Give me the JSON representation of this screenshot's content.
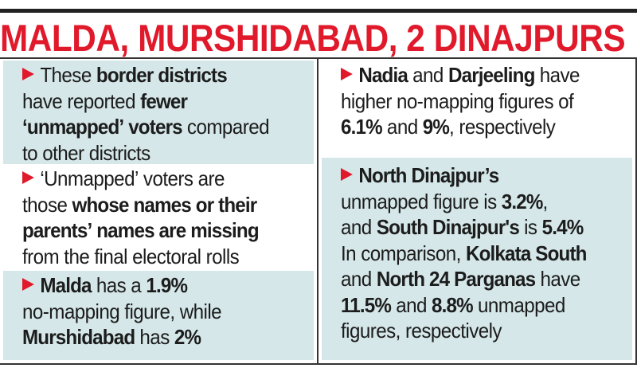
{
  "title": "MALDA, MURSHIDABAD, 2 DINAJPURS",
  "colors": {
    "title": "#e0192b",
    "panel": "#d5e7e9",
    "bullet": "#e0192b"
  },
  "bullet_icon": "red-arrowhead",
  "left": [
    {
      "segments": [
        {
          "t": "These ",
          "b": false
        },
        {
          "t": "border districts",
          "b": true
        },
        {
          "t": " have reported ",
          "b": false
        },
        {
          "t": "fewer ‘unmapped’ voters",
          "b": true
        },
        {
          "t": " compared to other districts",
          "b": false
        }
      ],
      "lines": [
        [
          {
            "t": "These ",
            "b": false
          },
          {
            "t": "border districts",
            "b": true
          }
        ],
        [
          {
            "t": "have reported ",
            "b": false
          },
          {
            "t": "fewer",
            "b": true
          }
        ],
        [
          {
            "t": "‘unmapped’ voters",
            "b": true
          },
          {
            "t": " compared",
            "b": false
          }
        ],
        [
          {
            "t": "to other districts",
            "b": false
          }
        ]
      ]
    },
    {
      "lines": [
        [
          {
            "t": "‘Unmapped’ voters are",
            "b": false
          }
        ],
        [
          {
            "t": "those ",
            "b": false
          },
          {
            "t": "whose names or their",
            "b": true
          }
        ],
        [
          {
            "t": "parents’ names are missing",
            "b": true
          }
        ],
        [
          {
            "t": "from the final electoral rolls",
            "b": false
          }
        ]
      ]
    },
    {
      "lines": [
        [
          {
            "t": "Malda",
            "b": true
          },
          {
            "t": " has a ",
            "b": false
          },
          {
            "t": "1.9%",
            "b": true
          }
        ],
        [
          {
            "t": "no-mapping figure, while",
            "b": false
          }
        ],
        [
          {
            "t": "Murshidabad",
            "b": true
          },
          {
            "t": " has ",
            "b": false
          },
          {
            "t": "2%",
            "b": true
          }
        ]
      ]
    }
  ],
  "right": [
    {
      "lines": [
        [
          {
            "t": "Nadia",
            "b": true
          },
          {
            "t": " and ",
            "b": false
          },
          {
            "t": "Darjeeling",
            "b": true
          },
          {
            "t": " have",
            "b": false
          }
        ],
        [
          {
            "t": "higher no-mapping figures of",
            "b": false
          }
        ],
        [
          {
            "t": "6.1%",
            "b": true
          },
          {
            "t": " and ",
            "b": false
          },
          {
            "t": "9%",
            "b": true
          },
          {
            "t": ", respectively",
            "b": false
          }
        ]
      ]
    },
    {
      "lines": [
        [
          {
            "t": "North Dinajpur’s",
            "b": true
          }
        ],
        [
          {
            "t": "unmapped figure is ",
            "b": false
          },
          {
            "t": "3.2%",
            "b": true
          },
          {
            "t": ",",
            "b": false
          }
        ],
        [
          {
            "t": "and ",
            "b": false
          },
          {
            "t": "South Dinajpur's",
            "b": true
          },
          {
            "t": " is ",
            "b": false
          },
          {
            "t": "5.4%",
            "b": true
          }
        ],
        [
          {
            "t": "In comparison, ",
            "b": false
          },
          {
            "t": "Kolkata South",
            "b": true
          }
        ],
        [
          {
            "t": "and ",
            "b": false
          },
          {
            "t": "North 24 Parganas",
            "b": true
          },
          {
            "t": " have",
            "b": false
          }
        ],
        [
          {
            "t": "11.5%",
            "b": true
          },
          {
            "t": " and ",
            "b": false
          },
          {
            "t": "8.8%",
            "b": true
          },
          {
            "t": " unmapped",
            "b": false
          }
        ],
        [
          {
            "t": "figures, respectively",
            "b": false
          }
        ]
      ]
    }
  ]
}
